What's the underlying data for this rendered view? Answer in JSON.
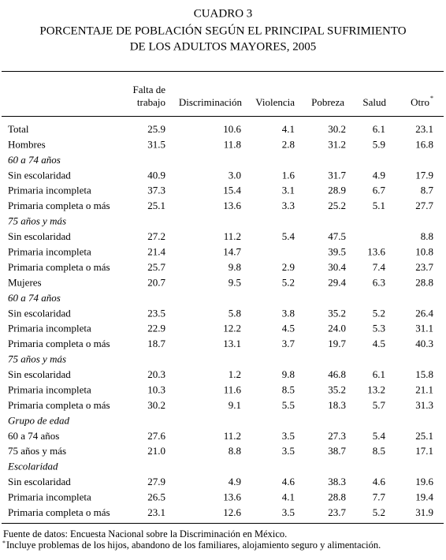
{
  "title": [
    "CUADRO 3",
    "PORCENTAJE DE POBLACIÓN SEGÚN EL PRINCIPAL SUFRIMIENTO",
    "DE LOS ADULTOS MAYORES, 2005"
  ],
  "table": {
    "columns": [
      [
        "Falta de",
        "trabajo"
      ],
      [
        "Discriminación"
      ],
      [
        "Violencia"
      ],
      [
        "Pobreza"
      ],
      [
        "Salud"
      ],
      [
        "Otro"
      ]
    ],
    "column_note": "*",
    "rows": [
      {
        "label": "Total",
        "values": [
          "25.9",
          "10.6",
          "4.1",
          "30.2",
          "6.1",
          "23.1"
        ]
      },
      {
        "label": "Hombres",
        "values": [
          "31.5",
          "11.8",
          "2.8",
          "31.2",
          "5.9",
          "16.8"
        ]
      },
      {
        "section": "60 a 74 años"
      },
      {
        "label": "Sin escolaridad",
        "values": [
          "40.9",
          "3.0",
          "1.6",
          "31.7",
          "4.9",
          "17.9"
        ]
      },
      {
        "label": "Primaria incompleta",
        "values": [
          "37.3",
          "15.4",
          "3.1",
          "28.9",
          "6.7",
          "8.7"
        ]
      },
      {
        "label": "Primaria completa o más",
        "values": [
          "25.1",
          "13.6",
          "3.3",
          "25.2",
          "5.1",
          "27.7"
        ]
      },
      {
        "section": "75 años y más"
      },
      {
        "label": "Sin escolaridad",
        "values": [
          "27.2",
          "11.2",
          "5.4",
          "47.5",
          null,
          "8.8"
        ]
      },
      {
        "label": "Primaria incompleta",
        "values": [
          "21.4",
          "14.7",
          null,
          "39.5",
          "13.6",
          "10.8"
        ]
      },
      {
        "label": "Primaria completa o más",
        "values": [
          "25.7",
          "9.8",
          "2.9",
          "30.4",
          "7.4",
          "23.7"
        ]
      },
      {
        "label": "Mujeres",
        "values": [
          "20.7",
          "9.5",
          "5.2",
          "29.4",
          "6.3",
          "28.8"
        ]
      },
      {
        "section": "60 a 74 años"
      },
      {
        "label": "Sin escolaridad",
        "values": [
          "23.5",
          "5.8",
          "3.8",
          "35.2",
          "5.2",
          "26.4"
        ]
      },
      {
        "label": "Primaria incompleta",
        "values": [
          "22.9",
          "12.2",
          "4.5",
          "24.0",
          "5.3",
          "31.1"
        ]
      },
      {
        "label": "Primaria completa o más",
        "values": [
          "18.7",
          "13.1",
          "3.7",
          "19.7",
          "4.5",
          "40.3"
        ]
      },
      {
        "section": "75 años y más"
      },
      {
        "label": "Sin escolaridad",
        "values": [
          "20.3",
          "1.2",
          "9.8",
          "46.8",
          "6.1",
          "15.8"
        ]
      },
      {
        "label": "Primaria incompleta",
        "values": [
          "10.3",
          "11.6",
          "8.5",
          "35.2",
          "13.2",
          "21.1"
        ]
      },
      {
        "label": "Primaria completa o más",
        "values": [
          "30.2",
          "9.1",
          "5.5",
          "18.3",
          "5.7",
          "31.3"
        ]
      },
      {
        "section": "Grupo de edad"
      },
      {
        "label": "60 a 74 años",
        "values": [
          "27.6",
          "11.2",
          "3.5",
          "27.3",
          "5.4",
          "25.1"
        ]
      },
      {
        "label": "75 años y más",
        "values": [
          "21.0",
          "8.8",
          "3.5",
          "38.7",
          "8.5",
          "17.1"
        ]
      },
      {
        "section": "Escolaridad"
      },
      {
        "label": "Sin escolaridad",
        "values": [
          "27.9",
          "4.9",
          "4.6",
          "38.3",
          "4.6",
          "19.6"
        ]
      },
      {
        "label": "Primaria incompleta",
        "values": [
          "26.5",
          "13.6",
          "4.1",
          "28.8",
          "7.7",
          "19.4"
        ]
      },
      {
        "label": "Primaria completa o más",
        "values": [
          "23.1",
          "12.6",
          "3.5",
          "23.7",
          "5.2",
          "31.9"
        ]
      }
    ]
  },
  "footnotes": {
    "source": "Fuente de datos: Encuesta Nacional sobre la Discriminación en México.",
    "note_mark": "*",
    "note": "Incluye problemas de los hijos, abandono de los familiares, alojamiento seguro y alimentación."
  }
}
